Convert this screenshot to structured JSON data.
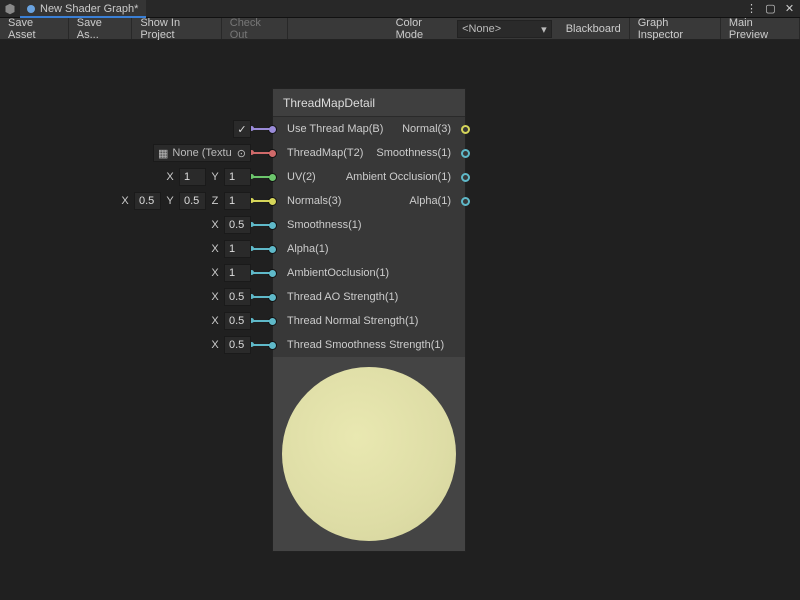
{
  "window": {
    "title": "New Shader Graph*"
  },
  "toolbar": {
    "save": "Save Asset",
    "saveAs": "Save As...",
    "showInProject": "Show In Project",
    "checkOut": "Check Out",
    "colorModeLabel": "Color Mode",
    "colorModeValue": "<None>",
    "blackboard": "Blackboard",
    "graphInspector": "Graph Inspector",
    "mainPreview": "Main Preview"
  },
  "node": {
    "title": "ThreadMapDetail",
    "inputs": [
      {
        "label": "Use Thread Map(B)",
        "color": "#9a8bd8",
        "ext": {
          "kind": "check",
          "checked": true
        }
      },
      {
        "label": "ThreadMap(T2)",
        "color": "#d06a6a",
        "ext": {
          "kind": "obj",
          "text": "None (Textu",
          "icon": true
        }
      },
      {
        "label": "UV(2)",
        "color": "#6cc66c",
        "ext": {
          "kind": "vec2",
          "x": "1",
          "y": "1"
        }
      },
      {
        "label": "Normals(3)",
        "color": "#d6d65a",
        "ext": {
          "kind": "vec3",
          "x": "0.5",
          "y": "0.5",
          "z": "1"
        }
      },
      {
        "label": "Smoothness(1)",
        "color": "#5fb9c9",
        "ext": {
          "kind": "vec1",
          "x": "0.5"
        }
      },
      {
        "label": "Alpha(1)",
        "color": "#5fb9c9",
        "ext": {
          "kind": "vec1",
          "x": "1"
        }
      },
      {
        "label": "AmbientOcclusion(1)",
        "color": "#5fb9c9",
        "ext": {
          "kind": "vec1",
          "x": "1"
        }
      },
      {
        "label": "Thread AO Strength(1)",
        "color": "#5fb9c9",
        "ext": {
          "kind": "vec1",
          "x": "0.5"
        }
      },
      {
        "label": "Thread Normal Strength(1)",
        "color": "#5fb9c9",
        "ext": {
          "kind": "vec1",
          "x": "0.5"
        }
      },
      {
        "label": "Thread Smoothness Strength(1)",
        "color": "#5fb9c9",
        "ext": {
          "kind": "vec1",
          "x": "0.5"
        }
      }
    ],
    "outputs": [
      {
        "label": "Normal(3)",
        "color": "#d6d65a"
      },
      {
        "label": "Smoothness(1)",
        "color": "#5fb9c9"
      },
      {
        "label": "Ambient Occlusion(1)",
        "color": "#5fb9c9"
      },
      {
        "label": "Alpha(1)",
        "color": "#5fb9c9"
      }
    ],
    "previewColor": "#e0dfa9"
  }
}
